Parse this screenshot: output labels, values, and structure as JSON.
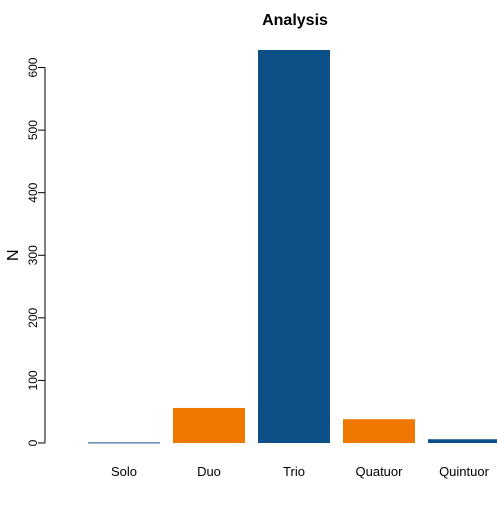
{
  "chart_data": {
    "type": "bar",
    "title": "Analysis",
    "xlabel": "",
    "ylabel": "N",
    "categories": [
      "Solo",
      "Duo",
      "Trio",
      "Quatuor",
      "Quintuor"
    ],
    "values": [
      1,
      56,
      628,
      38,
      6
    ],
    "colors": [
      "#0d4f87",
      "#f07700",
      "#0d4f87",
      "#f07700",
      "#0d4f87"
    ],
    "ylim": [
      0,
      650
    ],
    "yticks": [
      0,
      100,
      200,
      300,
      400,
      500,
      600
    ],
    "grid": false,
    "legend": "none"
  }
}
